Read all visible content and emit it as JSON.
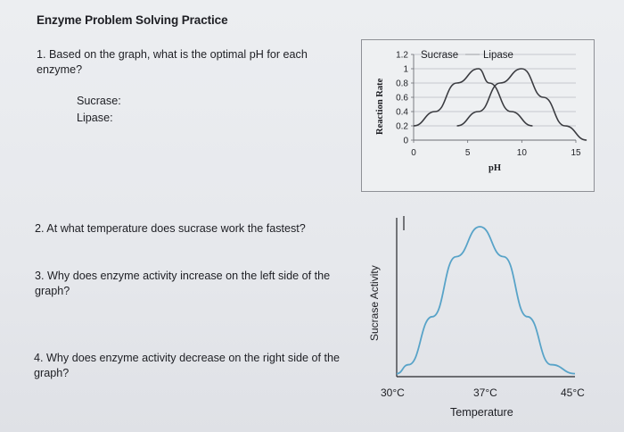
{
  "worksheet": {
    "title": "Enzyme Problem Solving Practice",
    "question1": "1. Based on the graph, what is the optimal pH for each enzyme?",
    "answer_label_sucrase": "Sucrase:",
    "answer_label_lipase": "Lipase:",
    "question2": "2. At what temperature does sucrase work the fastest?",
    "question3": "3. Why does enzyme activity increase on the left side of the graph?",
    "question4": "4. Why does enzyme activity decrease on the right side of the graph?"
  },
  "chart_data": [
    {
      "type": "line",
      "ylabel": "Reaction Rate",
      "xlabel": "pH",
      "x_ticks": [
        "0",
        "5",
        "10",
        "15"
      ],
      "y_ticks": [
        "1.2",
        "1",
        "0.8",
        "0.6",
        "0.4",
        "0.2",
        "0"
      ],
      "xlim": [
        0,
        15
      ],
      "ylim": [
        0,
        1.2
      ],
      "grid": true,
      "legend": "top",
      "series": [
        {
          "name": "Sucrase",
          "x": [
            0,
            2,
            4,
            6,
            7,
            9,
            11
          ],
          "y": [
            0.2,
            0.4,
            0.8,
            1.0,
            0.8,
            0.4,
            0.2
          ],
          "color": "#3a3b40"
        },
        {
          "name": "Lipase",
          "x": [
            4,
            6,
            8,
            10,
            12,
            14,
            16
          ],
          "y": [
            0.2,
            0.4,
            0.8,
            1.0,
            0.6,
            0.2,
            0.0
          ],
          "color": "#3a3b40"
        }
      ]
    },
    {
      "type": "line",
      "ylabel": "Sucrase Activity",
      "xlabel": "Temperature",
      "x_ticks": [
        "30°C",
        "37°C",
        "45°C"
      ],
      "series": [
        {
          "x": [
            30,
            31,
            33,
            35,
            37,
            39,
            41,
            43,
            45
          ],
          "y": [
            0.02,
            0.08,
            0.4,
            0.8,
            1.0,
            0.8,
            0.4,
            0.08,
            0.02
          ],
          "color": "#58a3c8"
        }
      ]
    }
  ]
}
